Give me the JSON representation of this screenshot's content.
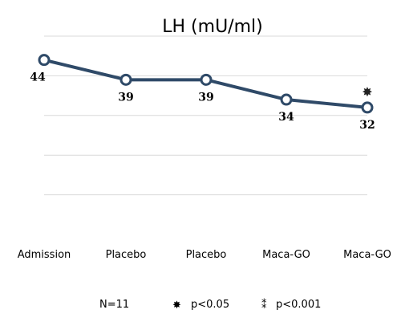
{
  "chart_data": {
    "type": "line",
    "title": "LH (mU/ml)",
    "xlabel": "",
    "ylabel": "",
    "categories": [
      "Admission",
      "Placebo",
      "Placebo",
      "Maca-GO",
      "Maca-GO"
    ],
    "series": [
      {
        "values": [
          44,
          39,
          39,
          34,
          32
        ]
      }
    ],
    "data_labels": [
      "44",
      "39",
      "39",
      "34",
      "32"
    ],
    "ylim": [
      0,
      50
    ],
    "grid": true,
    "significance_marks": [
      {
        "category_index": 4,
        "symbol": "✸"
      }
    ],
    "footnote": {
      "n": "N=11",
      "p05_symbol": "✸",
      "p05_text": "p<0.05",
      "p001_symbol": "⁑",
      "p001_text": "p<0.001"
    },
    "colors": {
      "line": "#2f4a68",
      "marker_fill": "#ffffff",
      "grid": "#d9d9d9"
    }
  }
}
